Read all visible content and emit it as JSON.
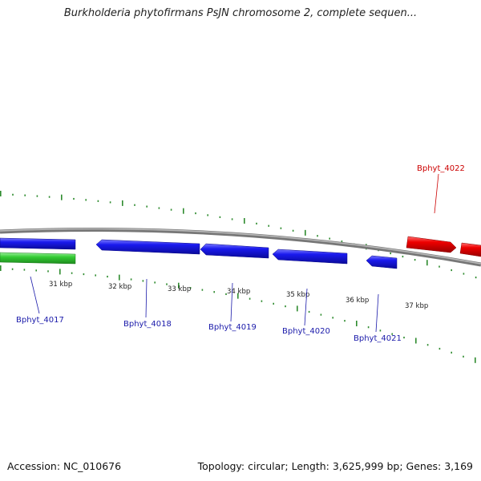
{
  "title": "Burkholderia phytofirmans PsJN chromosome 2, complete sequen...",
  "footer": {
    "accession": "Accession: NC_010676",
    "summary": "Topology: circular; Length: 3,625,999 bp; Genes: 3,169"
  },
  "colors": {
    "forward_gene": "#ee0000",
    "reverse_gene": "#1a1aee",
    "rna_gene": "#33cc33",
    "backbone": "#888888",
    "ticks": "#2e8b2e",
    "forward_label": "#cc0000",
    "reverse_label": "#1a1aaa"
  },
  "scale": {
    "ticks": [
      "31 kbp",
      "32 kbp",
      "33 kbp",
      "34 kbp",
      "35 kbp",
      "36 kbp",
      "37 kbp"
    ]
  },
  "genes": [
    {
      "label": "Bphyt_4017",
      "strand": "reverse"
    },
    {
      "label": "Bphyt_4018",
      "strand": "reverse"
    },
    {
      "label": "Bphyt_4019",
      "strand": "reverse"
    },
    {
      "label": "Bphyt_4020",
      "strand": "reverse"
    },
    {
      "label": "Bphyt_4021",
      "strand": "reverse"
    },
    {
      "label": "Bphyt_4022",
      "strand": "forward"
    }
  ]
}
